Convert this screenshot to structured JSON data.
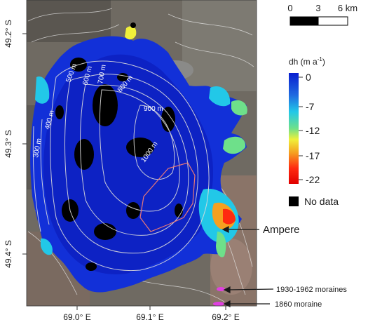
{
  "scale_bar": {
    "labels": [
      "0",
      "3",
      "6 km"
    ]
  },
  "legend": {
    "title_main": "dh (m a",
    "title_exp": "-1",
    "title_end": ")",
    "ticks": [
      "0",
      "-7",
      "-12",
      "-17",
      "-22"
    ],
    "colors": [
      "#0a1fd0",
      "#1f6ae0",
      "#22c8e8",
      "#6ee08a",
      "#f0f03a",
      "#f5a020",
      "#ff2a10",
      "#e00000"
    ],
    "no_data_label": "No data",
    "no_data_color": "#000000"
  },
  "axes": {
    "lat_labels": [
      "49.2° S",
      "49.3° S",
      "49.4° S"
    ],
    "lon_labels": [
      "69.0° E",
      "69.1° E",
      "69.2° E"
    ]
  },
  "contours": [
    "500 m",
    "600 m",
    "700 m",
    "800 m",
    "900 m",
    "1000 m",
    "400 m",
    "300 m"
  ],
  "annotations": {
    "ampere": "Ampere",
    "moraines_1930": "1930-1962 moraines",
    "moraine_1860": "1860 moraine",
    "moraine_color": "#e040e0"
  }
}
